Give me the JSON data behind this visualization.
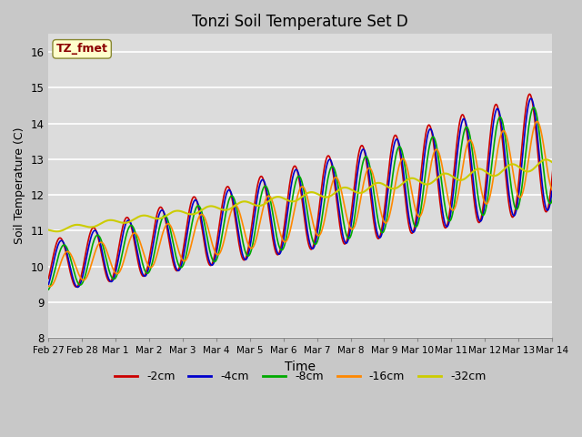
{
  "title": "Tonzi Soil Temperature Set D",
  "xlabel": "Time",
  "ylabel": "Soil Temperature (C)",
  "ylim": [
    8.0,
    16.5
  ],
  "yticks": [
    8.0,
    9.0,
    10.0,
    11.0,
    12.0,
    13.0,
    14.0,
    15.0,
    16.0
  ],
  "annotation_text": "TZ_fmet",
  "annotation_color": "#8B0000",
  "annotation_bg": "#FFFFCC",
  "fig_bg": "#C8C8C8",
  "plot_bg": "#DCDCDC",
  "series": {
    "-2cm": {
      "color": "#CC0000",
      "lw": 1.2
    },
    "-4cm": {
      "color": "#0000CC",
      "lw": 1.2
    },
    "-8cm": {
      "color": "#00AA00",
      "lw": 1.2
    },
    "-16cm": {
      "color": "#FF8800",
      "lw": 1.2
    },
    "-32cm": {
      "color": "#CCCC00",
      "lw": 1.5
    }
  },
  "xtick_labels": [
    "Feb 27",
    "Feb 28",
    "Mar 1",
    "Mar 2",
    "Mar 3",
    "Mar 4",
    "Mar 5",
    "Mar 6",
    "Mar 7",
    "Mar 8",
    "Mar 9",
    "Mar 10",
    "Mar 11",
    "Mar 12",
    "Mar 13",
    "Mar 14"
  ],
  "n_days": 16,
  "pts_per_day": 48
}
